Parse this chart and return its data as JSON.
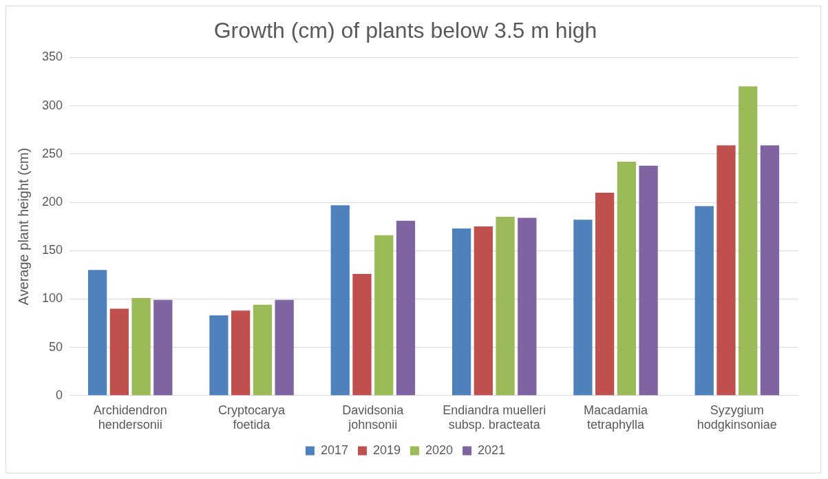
{
  "chart_data": {
    "type": "bar",
    "title": "Growth (cm) of plants below 3.5 m high",
    "ylabel": "Average plant height (cm)",
    "categories": [
      "Archidendron hendersonii",
      "Cryptocarya foetida",
      "Davidsonia johnsonii",
      "Endiandra muelleri subsp. bracteata",
      "Macadamia tetraphylla",
      "Syzygium hodgkinsoniae"
    ],
    "series": [
      {
        "name": "2017",
        "color": "#4f81bd",
        "values": [
          130,
          83,
          197,
          173,
          182,
          196
        ]
      },
      {
        "name": "2019",
        "color": "#c0504d",
        "values": [
          90,
          88,
          126,
          175,
          210,
          259
        ]
      },
      {
        "name": "2020",
        "color": "#9bbb59",
        "values": [
          101,
          94,
          166,
          185,
          242,
          320
        ]
      },
      {
        "name": "2021",
        "color": "#8064a2",
        "values": [
          99,
          99,
          181,
          184,
          238,
          259
        ]
      }
    ],
    "ylim": [
      0,
      350
    ],
    "yticks": [
      0,
      50,
      100,
      150,
      200,
      250,
      300,
      350
    ],
    "grid": "y",
    "legend": "bottom"
  }
}
